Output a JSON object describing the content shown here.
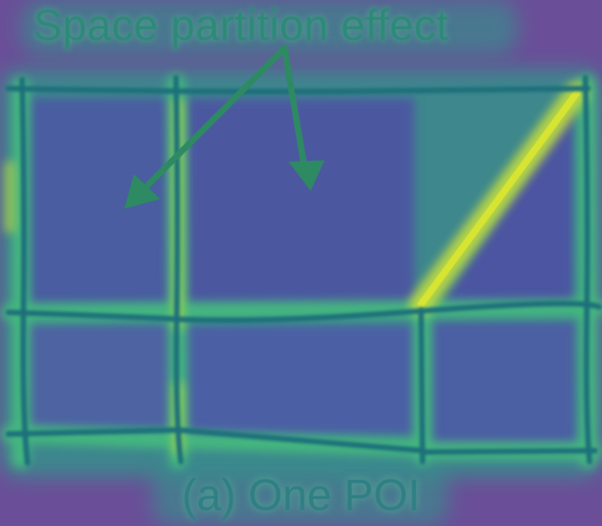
{
  "figure": {
    "annotation": "Space partition effect",
    "caption": "(a) One POI"
  },
  "colors": {
    "background": "#6a4f98",
    "region_fill": "#4a5da0",
    "glow_low": "#2f9a8a",
    "glow_mid": "#46c87a",
    "glow_high": "#c9e23a",
    "line": "#1f6f7a",
    "arrow": "#2e8a62",
    "text": "#2e8a78"
  }
}
